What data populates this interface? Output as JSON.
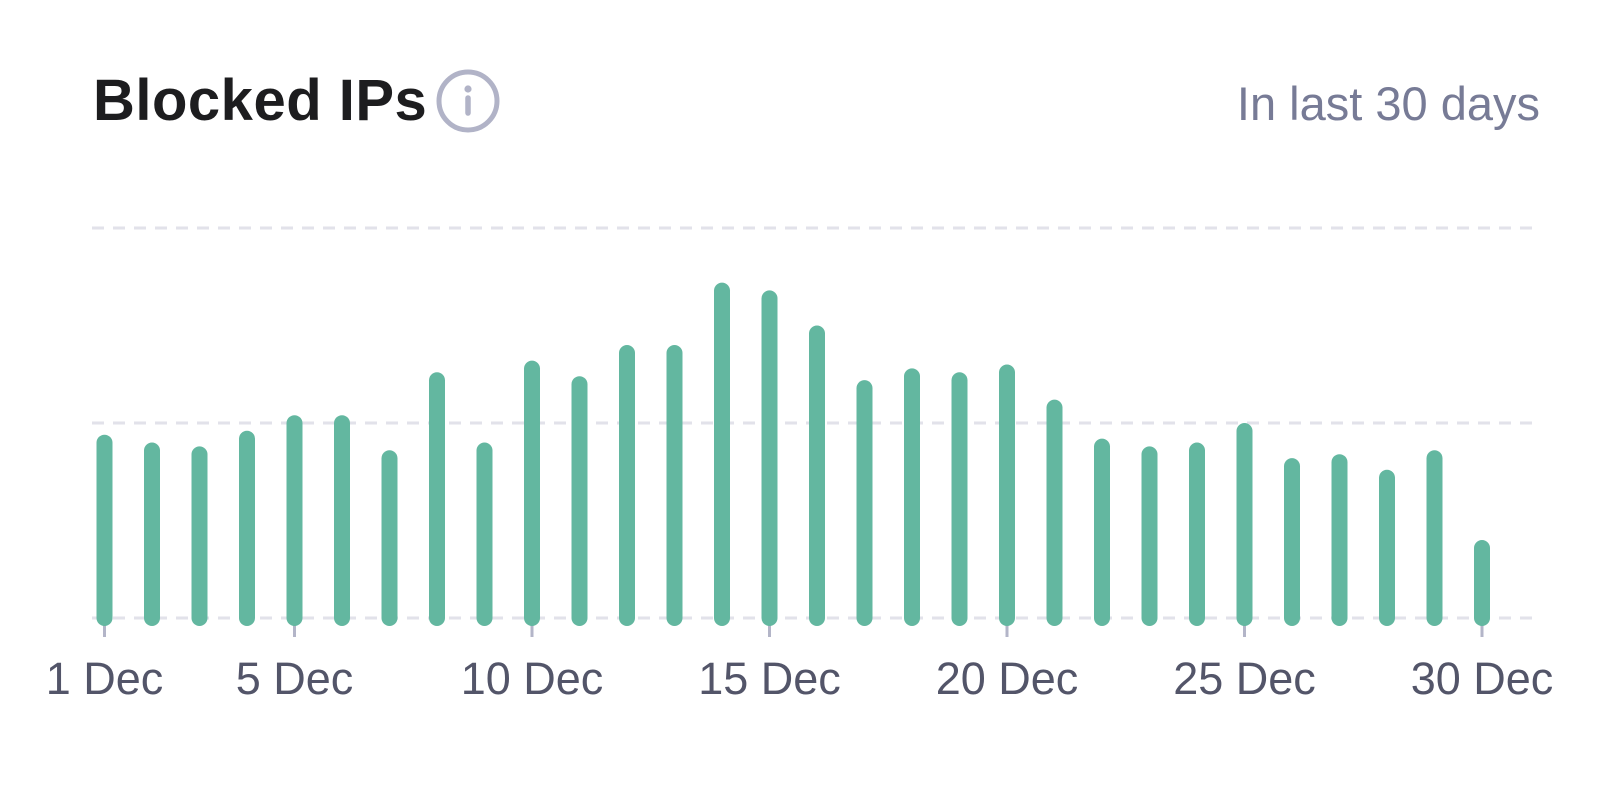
{
  "widget": {
    "title": "Blocked IPs",
    "period": "In last 30 days",
    "info_icon": "info-icon"
  },
  "colors": {
    "bar": "#63b7a0",
    "grid": "#e2e2ea",
    "tick": "#b3b5c8",
    "label": "#535569",
    "title": "#1d1d1f",
    "period": "#777b96",
    "icon": "#b1b3c7"
  },
  "chart_data": {
    "type": "bar",
    "title": "Blocked IPs",
    "subtitle": "In last 30 days",
    "xlabel": "",
    "ylabel": "",
    "ylim": [
      0,
      100
    ],
    "grid": true,
    "categories": [
      "1 Dec",
      "2 Dec",
      "3 Dec",
      "4 Dec",
      "5 Dec",
      "6 Dec",
      "7 Dec",
      "8 Dec",
      "9 Dec",
      "10 Dec",
      "11 Dec",
      "12 Dec",
      "13 Dec",
      "14 Dec",
      "15 Dec",
      "16 Dec",
      "17 Dec",
      "18 Dec",
      "19 Dec",
      "20 Dec",
      "21 Dec",
      "22 Dec",
      "23 Dec",
      "24 Dec",
      "25 Dec",
      "26 Dec",
      "27 Dec",
      "28 Dec",
      "29 Dec",
      "30 Dec"
    ],
    "values": [
      47,
      45,
      44,
      48,
      52,
      52,
      43,
      63,
      45,
      66,
      62,
      70,
      70,
      86,
      84,
      75,
      61,
      64,
      63,
      65,
      56,
      46,
      44,
      45,
      50,
      41,
      42,
      38,
      43,
      20
    ],
    "tick_labels": [
      "1 Dec",
      "5 Dec",
      "10 Dec",
      "15 Dec",
      "20 Dec",
      "25 Dec",
      "30 Dec"
    ]
  }
}
